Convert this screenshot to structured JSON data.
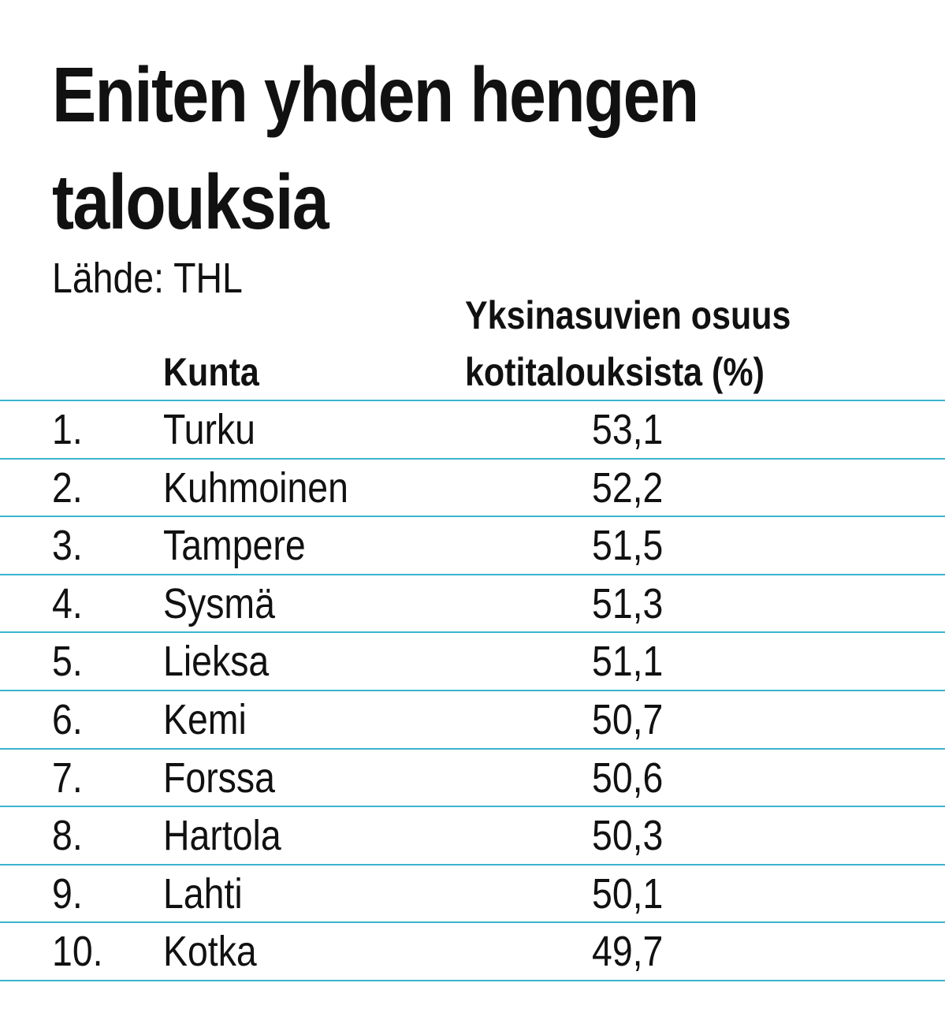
{
  "header": {
    "title_line1": "Eniten yhden hengen",
    "title_line2": "talouksia",
    "source": "Lähde: THL"
  },
  "columns": {
    "kunta": "Kunta",
    "value_line1": "Yksinasuvien osuus",
    "value_line2": "kotitalouksista (%)"
  },
  "chart_data": {
    "type": "table",
    "title": "Eniten yhden hengen talouksia",
    "source": "Lähde: THL",
    "columns": [
      "",
      "Kunta",
      "Yksinasuvien osuus kotitalouksista (%)"
    ],
    "rows": [
      {
        "rank": "1.",
        "name": "Turku",
        "value": "53,1"
      },
      {
        "rank": "2.",
        "name": "Kuhmoinen",
        "value": "52,2"
      },
      {
        "rank": "3.",
        "name": "Tampere",
        "value": "51,5"
      },
      {
        "rank": "4.",
        "name": "Sysmä",
        "value": "51,3"
      },
      {
        "rank": "5.",
        "name": "Lieksa",
        "value": "51,1"
      },
      {
        "rank": "6.",
        "name": "Kemi",
        "value": "50,7"
      },
      {
        "rank": "7.",
        "name": "Forssa",
        "value": "50,6"
      },
      {
        "rank": "8.",
        "name": "Hartola",
        "value": "50,3"
      },
      {
        "rank": "9.",
        "name": "Lahti",
        "value": "50,1"
      },
      {
        "rank": "10.",
        "name": "Kotka",
        "value": "49,7"
      }
    ]
  },
  "colors": {
    "rule": "#3bb4cf",
    "text": "#111111",
    "background": "#ffffff"
  }
}
